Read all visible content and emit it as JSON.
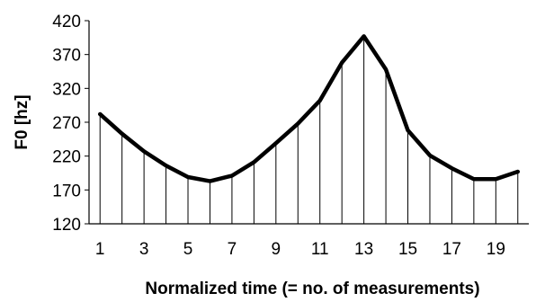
{
  "chart_data": {
    "type": "line",
    "title": "",
    "xlabel": "Normalized time (= no. of measurements)",
    "ylabel": "F0 [hz]",
    "x": [
      1,
      2,
      3,
      4,
      5,
      6,
      7,
      8,
      9,
      10,
      11,
      12,
      13,
      14,
      15,
      16,
      17,
      18,
      19,
      20
    ],
    "series": [
      {
        "values": [
          282,
          253,
          227,
          206,
          189,
          183,
          191,
          211,
          239,
          268,
          302,
          358,
          397,
          348,
          258,
          221,
          202,
          186,
          186,
          197
        ]
      }
    ],
    "xticks": [
      1,
      3,
      5,
      7,
      9,
      11,
      13,
      15,
      17,
      19
    ],
    "yticks": [
      120,
      170,
      220,
      270,
      320,
      370,
      420
    ],
    "ylim": [
      120,
      420
    ],
    "xlim": [
      0.5,
      20.5
    ],
    "drop_lines": true,
    "line_color": "#000000",
    "grid": false
  }
}
